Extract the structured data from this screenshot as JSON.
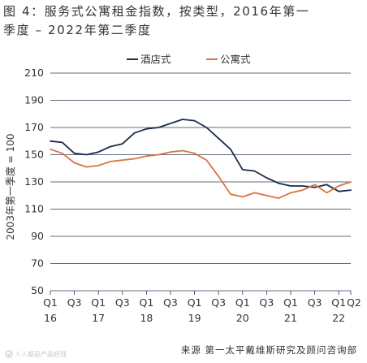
{
  "title": {
    "line1": "图 4：服务式公寓租金指数，按类型，2016年第一",
    "line2": "季度 – 2022年第二季度"
  },
  "source": "来源 第一太平戴维斯研究及顾问咨询部",
  "watermark": "人人都是产品经理",
  "chart_data": {
    "type": "line",
    "ylabel": "2003年第一季度 = 100",
    "ylim": [
      50,
      210
    ],
    "yticks": [
      50,
      70,
      90,
      110,
      130,
      150,
      170,
      190,
      210
    ],
    "grid": true,
    "legend_position": "top",
    "x": [
      "Q1 16",
      "Q2 16",
      "Q3 16",
      "Q4 16",
      "Q1 17",
      "Q2 17",
      "Q3 17",
      "Q4 17",
      "Q1 18",
      "Q2 18",
      "Q3 18",
      "Q4 18",
      "Q1 19",
      "Q2 19",
      "Q3 19",
      "Q4 19",
      "Q1 20",
      "Q2 20",
      "Q3 20",
      "Q4 20",
      "Q1 21",
      "Q2 21",
      "Q3 21",
      "Q4 21",
      "Q1 22",
      "Q2 22"
    ],
    "xtick_labels": [
      {
        "index": 0,
        "top": "Q1",
        "bottom": "16"
      },
      {
        "index": 2,
        "top": "Q3",
        "bottom": ""
      },
      {
        "index": 4,
        "top": "Q1",
        "bottom": "17"
      },
      {
        "index": 6,
        "top": "Q3",
        "bottom": ""
      },
      {
        "index": 8,
        "top": "Q1",
        "bottom": "18"
      },
      {
        "index": 10,
        "top": "Q3",
        "bottom": ""
      },
      {
        "index": 12,
        "top": "Q1",
        "bottom": "19"
      },
      {
        "index": 14,
        "top": "Q3",
        "bottom": ""
      },
      {
        "index": 16,
        "top": "Q1",
        "bottom": "20"
      },
      {
        "index": 18,
        "top": "Q3",
        "bottom": ""
      },
      {
        "index": 20,
        "top": "Q1",
        "bottom": "21"
      },
      {
        "index": 22,
        "top": "Q3",
        "bottom": ""
      },
      {
        "index": 24,
        "top": "Q1",
        "bottom": "22"
      },
      {
        "index": 25,
        "top": "Q2",
        "bottom": ""
      }
    ],
    "series": [
      {
        "name": "酒店式",
        "color": "#1c2b4a",
        "values": [
          160,
          159,
          151,
          150,
          152,
          156,
          158,
          166,
          169,
          170,
          173,
          176,
          175,
          170,
          162,
          154,
          139,
          138,
          133,
          129,
          127,
          127,
          126,
          128,
          123,
          124
        ]
      },
      {
        "name": "公寓式",
        "color": "#d9743d",
        "values": [
          154,
          151,
          144,
          141,
          142,
          145,
          146,
          147,
          149,
          150,
          152,
          153,
          151,
          146,
          134,
          121,
          119,
          122,
          120,
          118,
          122,
          124,
          128,
          122,
          127,
          130
        ]
      }
    ]
  }
}
